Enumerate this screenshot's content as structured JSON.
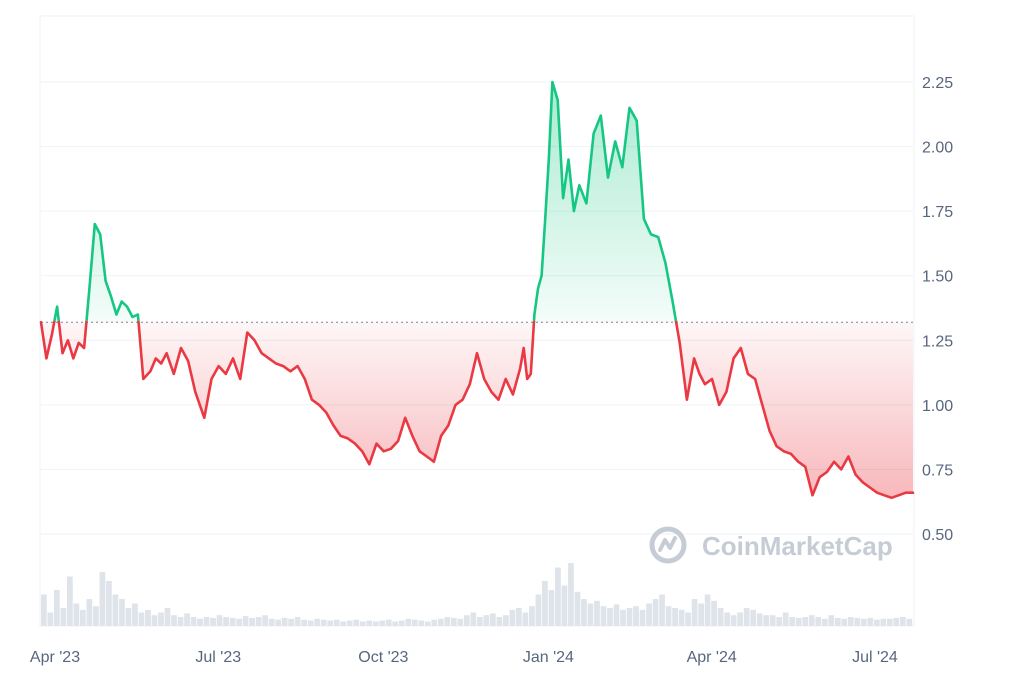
{
  "chart_data": {
    "type": "area",
    "baseline": 1.32,
    "ylim": [
      0.38,
      2.5
    ],
    "yticks": [
      {
        "value": 0.5,
        "label": "0.50"
      },
      {
        "value": 0.75,
        "label": "0.75"
      },
      {
        "value": 1.0,
        "label": "1.00"
      },
      {
        "value": 1.25,
        "label": "1.25"
      },
      {
        "value": 1.5,
        "label": "1.50"
      },
      {
        "value": 1.75,
        "label": "1.75"
      },
      {
        "value": 2.0,
        "label": "2.00"
      },
      {
        "value": 2.25,
        "label": "2.25"
      }
    ],
    "xlim": [
      "2023-04-01",
      "2024-07-30"
    ],
    "xticks": [
      {
        "date": "2023-04-01",
        "label": "Apr '23"
      },
      {
        "date": "2023-07-01",
        "label": "Jul '23"
      },
      {
        "date": "2023-10-01",
        "label": "Oct '23"
      },
      {
        "date": "2024-01-01",
        "label": "Jan '24"
      },
      {
        "date": "2024-04-01",
        "label": "Apr '24"
      },
      {
        "date": "2024-07-01",
        "label": "Jul '24"
      }
    ],
    "series": [
      {
        "x": [
          "2023-04-01",
          "2023-04-04",
          "2023-04-07",
          "2023-04-10",
          "2023-04-13",
          "2023-04-16",
          "2023-04-19",
          "2023-04-22",
          "2023-04-25",
          "2023-04-28",
          "2023-05-01",
          "2023-05-04",
          "2023-05-07",
          "2023-05-10",
          "2023-05-13",
          "2023-05-16",
          "2023-05-19",
          "2023-05-22",
          "2023-05-25",
          "2023-05-28",
          "2023-06-01",
          "2023-06-04",
          "2023-06-07",
          "2023-06-10",
          "2023-06-14",
          "2023-06-18",
          "2023-06-22",
          "2023-06-26",
          "2023-07-01",
          "2023-07-05",
          "2023-07-09",
          "2023-07-13",
          "2023-07-17",
          "2023-07-21",
          "2023-07-25",
          "2023-07-29",
          "2023-08-02",
          "2023-08-06",
          "2023-08-10",
          "2023-08-14",
          "2023-08-18",
          "2023-08-22",
          "2023-08-26",
          "2023-08-30",
          "2023-09-03",
          "2023-09-07",
          "2023-09-11",
          "2023-09-15",
          "2023-09-19",
          "2023-09-23",
          "2023-09-27",
          "2023-10-01",
          "2023-10-05",
          "2023-10-09",
          "2023-10-13",
          "2023-10-17",
          "2023-10-21",
          "2023-10-25",
          "2023-10-29",
          "2023-11-02",
          "2023-11-06",
          "2023-11-10",
          "2023-11-14",
          "2023-11-18",
          "2023-11-22",
          "2023-11-26",
          "2023-11-30",
          "2023-12-04",
          "2023-12-08",
          "2023-12-12",
          "2023-12-16",
          "2023-12-20",
          "2023-12-24",
          "2023-12-26",
          "2023-12-28",
          "2023-12-30",
          "2024-01-01",
          "2024-01-03",
          "2024-01-05",
          "2024-01-07",
          "2024-01-09",
          "2024-01-11",
          "2024-01-14",
          "2024-01-17",
          "2024-01-20",
          "2024-01-23",
          "2024-01-26",
          "2024-01-30",
          "2024-02-03",
          "2024-02-07",
          "2024-02-11",
          "2024-02-15",
          "2024-02-19",
          "2024-02-23",
          "2024-02-27",
          "2024-03-02",
          "2024-03-06",
          "2024-03-10",
          "2024-03-14",
          "2024-03-18",
          "2024-03-22",
          "2024-03-26",
          "2024-03-30",
          "2024-04-02",
          "2024-04-05",
          "2024-04-09",
          "2024-04-13",
          "2024-04-17",
          "2024-04-21",
          "2024-04-25",
          "2024-04-29",
          "2024-05-03",
          "2024-05-07",
          "2024-05-11",
          "2024-05-15",
          "2024-05-19",
          "2024-05-23",
          "2024-05-27",
          "2024-05-31",
          "2024-06-04",
          "2024-06-08",
          "2024-06-12",
          "2024-06-16",
          "2024-06-20",
          "2024-06-24",
          "2024-06-28",
          "2024-07-02",
          "2024-07-06",
          "2024-07-10",
          "2024-07-14",
          "2024-07-18",
          "2024-07-22",
          "2024-07-26",
          "2024-07-30"
        ],
        "y": [
          1.32,
          1.18,
          1.27,
          1.38,
          1.2,
          1.25,
          1.18,
          1.24,
          1.22,
          1.45,
          1.7,
          1.66,
          1.48,
          1.42,
          1.35,
          1.4,
          1.38,
          1.34,
          1.35,
          1.1,
          1.13,
          1.18,
          1.16,
          1.2,
          1.12,
          1.22,
          1.17,
          1.05,
          0.95,
          1.1,
          1.15,
          1.12,
          1.18,
          1.1,
          1.28,
          1.25,
          1.2,
          1.18,
          1.16,
          1.15,
          1.13,
          1.15,
          1.1,
          1.02,
          1.0,
          0.97,
          0.92,
          0.88,
          0.87,
          0.85,
          0.82,
          0.77,
          0.85,
          0.82,
          0.83,
          0.86,
          0.95,
          0.88,
          0.82,
          0.8,
          0.78,
          0.88,
          0.92,
          1.0,
          1.02,
          1.08,
          1.2,
          1.1,
          1.05,
          1.02,
          1.1,
          1.04,
          1.14,
          1.22,
          1.1,
          1.12,
          1.35,
          1.45,
          1.5,
          1.72,
          1.95,
          2.25,
          2.18,
          1.8,
          1.95,
          1.75,
          1.85,
          1.78,
          2.05,
          2.12,
          1.88,
          2.02,
          1.92,
          2.15,
          2.1,
          1.72,
          1.66,
          1.65,
          1.55,
          1.4,
          1.24,
          1.02,
          1.18,
          1.12,
          1.08,
          1.1,
          1.0,
          1.05,
          1.18,
          1.22,
          1.12,
          1.1,
          1.0,
          0.9,
          0.84,
          0.82,
          0.81,
          0.78,
          0.76,
          0.65,
          0.72,
          0.74,
          0.78,
          0.75,
          0.8,
          0.73,
          0.7,
          0.68,
          0.66,
          0.65,
          0.64,
          0.65,
          0.66,
          0.66
        ],
        "pos_color": "#16c784",
        "neg_color": "#ea3943"
      }
    ],
    "volume": [
      0.35,
      0.15,
      0.4,
      0.2,
      0.55,
      0.25,
      0.18,
      0.3,
      0.22,
      0.6,
      0.5,
      0.35,
      0.3,
      0.2,
      0.25,
      0.15,
      0.18,
      0.12,
      0.15,
      0.2,
      0.12,
      0.1,
      0.14,
      0.1,
      0.08,
      0.1,
      0.09,
      0.12,
      0.1,
      0.09,
      0.08,
      0.11,
      0.09,
      0.1,
      0.12,
      0.08,
      0.07,
      0.09,
      0.08,
      0.1,
      0.07,
      0.06,
      0.08,
      0.07,
      0.06,
      0.07,
      0.05,
      0.06,
      0.07,
      0.05,
      0.06,
      0.05,
      0.06,
      0.07,
      0.05,
      0.06,
      0.08,
      0.07,
      0.06,
      0.05,
      0.07,
      0.08,
      0.1,
      0.09,
      0.08,
      0.12,
      0.15,
      0.1,
      0.12,
      0.14,
      0.1,
      0.12,
      0.18,
      0.2,
      0.15,
      0.22,
      0.35,
      0.5,
      0.4,
      0.65,
      0.45,
      0.7,
      0.38,
      0.3,
      0.25,
      0.28,
      0.22,
      0.2,
      0.24,
      0.18,
      0.2,
      0.22,
      0.18,
      0.25,
      0.3,
      0.35,
      0.22,
      0.2,
      0.18,
      0.15,
      0.3,
      0.25,
      0.35,
      0.28,
      0.2,
      0.15,
      0.12,
      0.15,
      0.2,
      0.18,
      0.14,
      0.12,
      0.12,
      0.1,
      0.15,
      0.1,
      0.09,
      0.1,
      0.12,
      0.1,
      0.08,
      0.12,
      0.09,
      0.08,
      0.1,
      0.09,
      0.08,
      0.09,
      0.07,
      0.08,
      0.08,
      0.09,
      0.1,
      0.08
    ]
  },
  "watermark": {
    "text": "CoinMarketCap"
  },
  "colors": {
    "grid": "#eff2f5",
    "axis_text": "#58667e",
    "watermark": "#c6ccd6",
    "baseline": "#7a8494"
  }
}
